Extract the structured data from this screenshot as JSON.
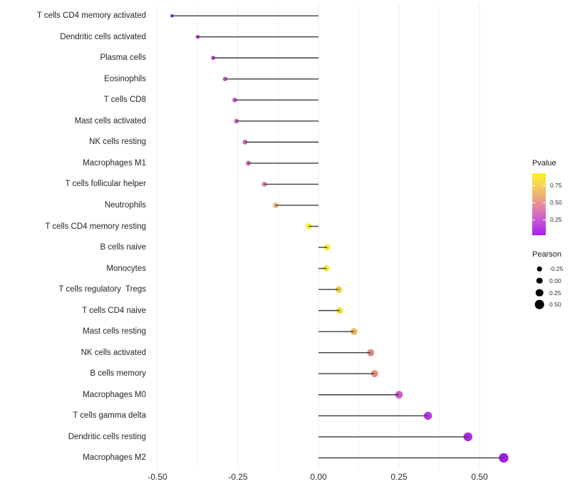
{
  "chart_data": {
    "type": "scatter",
    "variant": "lollipop",
    "orientation": "horizontal",
    "title": "",
    "xlabel": "",
    "ylabel": "",
    "grid": "vertical-only",
    "xlim": [
      -0.524,
      0.648
    ],
    "x_major_ticks": {
      "labels": [
        "-0.50",
        "-0.25",
        "0.00",
        "0.25",
        "0.50"
      ],
      "values": [
        -0.5,
        -0.25,
        0,
        0.25,
        0.5
      ]
    },
    "x_minor_ticks": [
      -0.375,
      -0.125,
      0.125,
      0.375
    ],
    "stem_color": "#3d3d3d",
    "categories": [
      "T cells CD4 memory activated",
      "Dendritic cells activated",
      "Plasma cells",
      "Eosinophils",
      "T cells CD8",
      "Mast cells activated",
      "NK cells resting",
      "Macrophages M1",
      "T cells follicular helper",
      "Neutrophils",
      "T cells CD4 memory resting",
      "B cells naive",
      "Monocytes",
      "T cells regulatory  Tregs",
      "T cells CD4 naive",
      "Mast cells resting",
      "NK cells activated",
      "B cells memory",
      "Macrophages M0",
      "T cells gamma delta",
      "Dendritic cells resting",
      "Macrophages M2"
    ],
    "values": [
      -0.455,
      -0.375,
      -0.327,
      -0.29,
      -0.26,
      -0.255,
      -0.228,
      -0.218,
      -0.168,
      -0.133,
      -0.03,
      0.027,
      0.025,
      0.063,
      0.066,
      0.11,
      0.162,
      0.174,
      0.25,
      0.34,
      0.464,
      0.575
    ],
    "point_colors": [
      "#8f2de4",
      "#a13bd8",
      "#b24bcb",
      "#bc53c4",
      "#c059c0",
      "#c25cbd",
      "#c662b7",
      "#c765b4",
      "#e0868a",
      "#f0ad72",
      "#f9ee27",
      "#f8ec28",
      "#f8ed28",
      "#eed239",
      "#f5e52c",
      "#ecb45e",
      "#e28b7d",
      "#e38e7a",
      "#cc5ec6",
      "#b438e2",
      "#ab2ae6",
      "#a51bea"
    ],
    "legends": {
      "pvalue": {
        "title": "Pvalue",
        "tick_labels": [
          "0.75",
          "0.50",
          "0.25"
        ],
        "tick_values": [
          0.75,
          0.5,
          0.25
        ],
        "bar_value_top": 0.93,
        "bar_value_bottom": 0.02,
        "gradient_top_to_bottom": [
          "#fbf227",
          "#f6d058",
          "#eda67f",
          "#dc79b2",
          "#c44edc",
          "#a81ef0"
        ]
      },
      "pearson": {
        "title": "Pearson",
        "labels": [
          "-0.25",
          "0.00",
          "0.25",
          "0.50"
        ],
        "values": [
          -0.25,
          0,
          0.25,
          0.5
        ],
        "dot_color": "#000000"
      }
    },
    "colors": {
      "grid_major": "#ebebeb",
      "grid_minor": "#f4f4f4",
      "background": "#ffffff"
    }
  }
}
